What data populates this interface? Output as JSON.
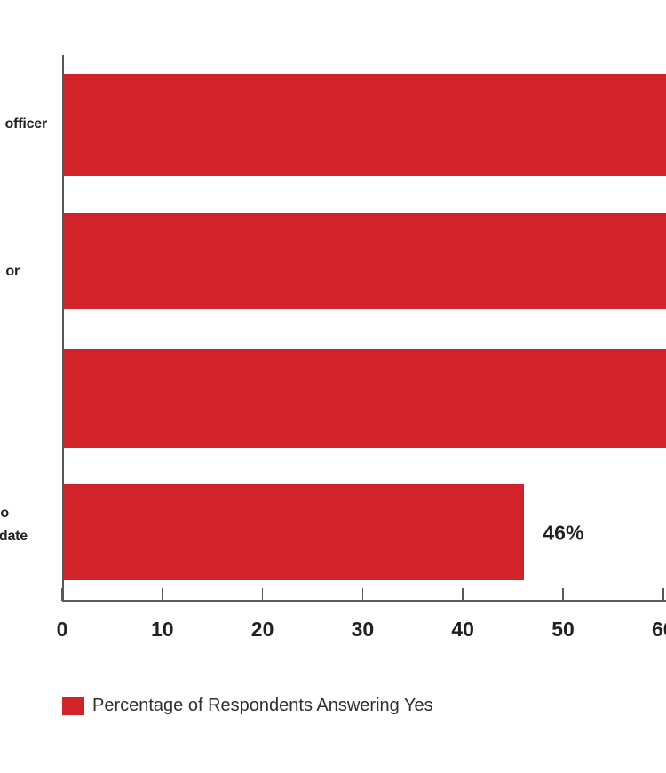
{
  "chart_data": {
    "type": "bar",
    "orientation": "horizontal",
    "title": "",
    "bar_color": "#d2222a",
    "text_color": "#231f20",
    "axis_color": "#58595b",
    "x_axis": {
      "ticks": [
        0,
        10,
        20,
        30,
        40,
        50,
        60
      ],
      "visible_range": [
        0,
        60
      ],
      "last_tick_clipped": true
    },
    "bars": [
      {
        "label_lines": [
          "officer"
        ],
        "value_pct": null,
        "clipped_at_right_edge": true,
        "value_label": ""
      },
      {
        "label_lines": [
          "or"
        ],
        "value_pct": null,
        "clipped_at_right_edge": true,
        "value_label": ""
      },
      {
        "label_lines": [],
        "value_pct": null,
        "clipped_at_right_edge": true,
        "value_label": ""
      },
      {
        "label_lines": [
          "o",
          "date"
        ],
        "value_pct": 46,
        "clipped_at_right_edge": false,
        "value_label": "46%"
      }
    ],
    "legend": {
      "label": "Percentage of Respondents Answering Yes",
      "position": "bottom-left"
    },
    "grid": false
  }
}
